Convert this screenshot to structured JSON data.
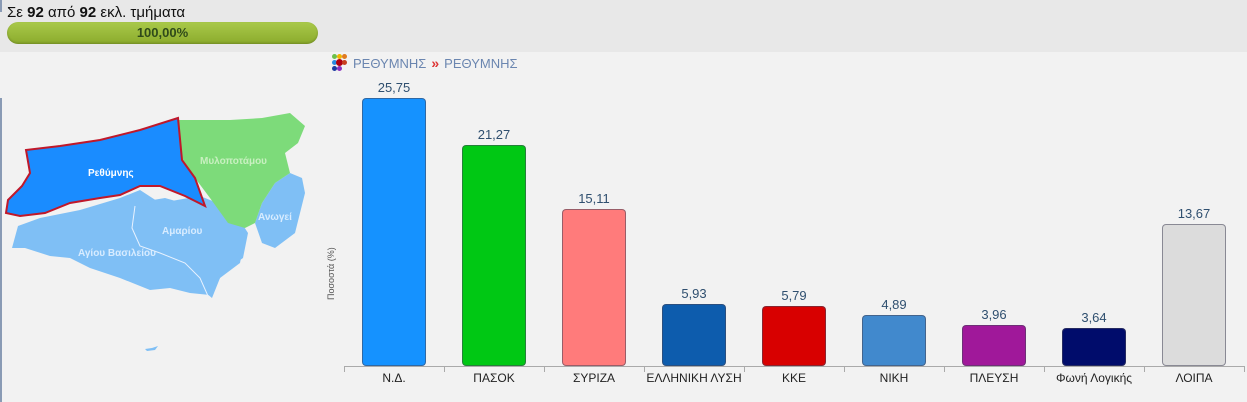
{
  "header": {
    "counter_prefix": "Σε",
    "counter_done": "92",
    "counter_mid": "από",
    "counter_total": "92",
    "counter_suffix": "εκλ. τμήματα",
    "progress_label": "100,00%",
    "progress_percent": 100
  },
  "breadcrumb": {
    "icon": "colored-dots-grid-icon",
    "level1": "ΡΕΘΥΜΝΗΣ",
    "separator": "»",
    "level2": "ΡΕΘΥΜΝΗΣ"
  },
  "map": {
    "regions": [
      {
        "name": "Ρεθύμνης",
        "color": "#1a8cff",
        "selected": true
      },
      {
        "name": "Μυλοποτάμου",
        "color": "#7ddb7a",
        "selected": false
      },
      {
        "name": "Ανωγείων",
        "color": "#7fbff5",
        "selected": false
      },
      {
        "name": "Αμαρίου",
        "color": "#7fbff5",
        "selected": false
      },
      {
        "name": "Αγίου Βασιλείου",
        "color": "#7fbff5",
        "selected": false
      }
    ],
    "visible_labels": [
      "Ρεθύμνης",
      "Μυλοποτάμου",
      "Ανωγεί",
      "Αμαρίου",
      "Αγίου Βασιλείου"
    ]
  },
  "chart_data": {
    "type": "bar",
    "title": "",
    "xlabel": "",
    "ylabel": "Ποσοστά (%)",
    "ylim": [
      0,
      26
    ],
    "grid": false,
    "legend": "none",
    "categories": [
      "Ν.Δ.",
      "ΠΑΣΟΚ",
      "ΣΥΡΙΖΑ",
      "ΕΛΛΗΝΙΚΗ ΛΥΣΗ",
      "ΚΚΕ",
      "ΝΙΚΗ",
      "ΠΛΕΥΣΗ",
      "Φωνή Λογικής",
      "ΛΟΙΠΑ"
    ],
    "values": [
      25.75,
      21.27,
      15.11,
      5.93,
      5.79,
      4.89,
      3.96,
      3.64,
      13.67
    ],
    "value_labels": [
      "25,75",
      "21,27",
      "15,11",
      "5,93",
      "5,79",
      "4,89",
      "3,96",
      "3,64",
      "13,67"
    ],
    "colors": [
      "#1592ff",
      "#00c814",
      "#ff7b7b",
      "#0d5cad",
      "#d80000",
      "#4189cd",
      "#a0189a",
      "#000c6b",
      "#dcdcdc"
    ]
  }
}
